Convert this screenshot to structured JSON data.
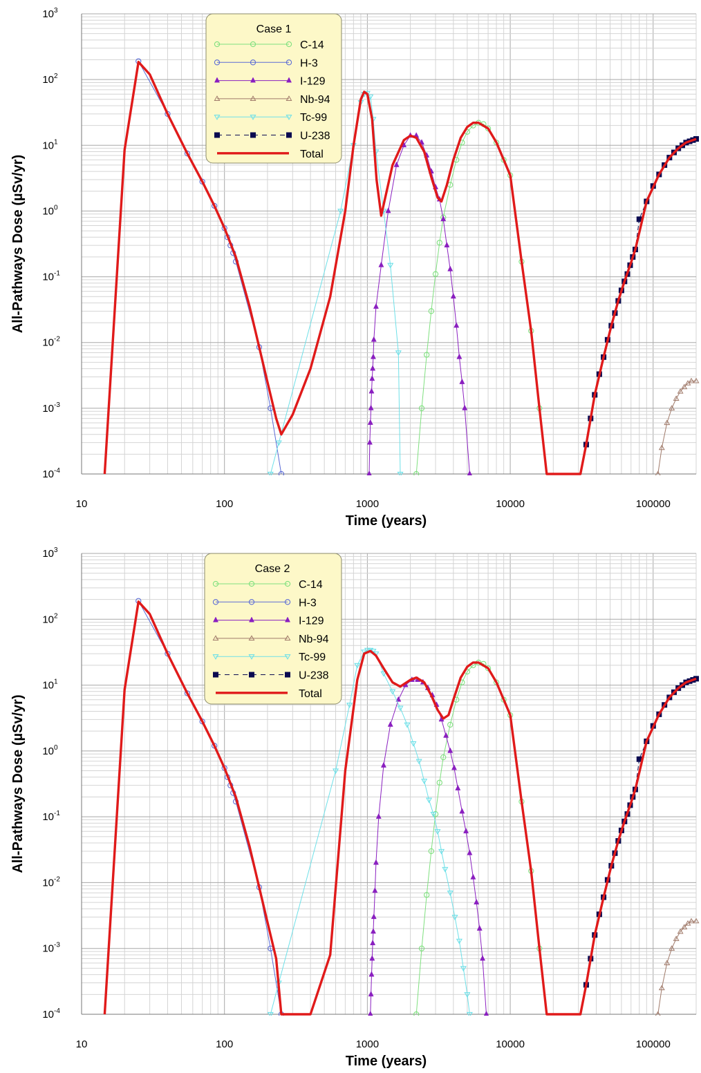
{
  "colors": {
    "C-14": "#7fe07f",
    "H-3": "#5b6bd6",
    "I-129": "#8a1fc0",
    "Nb-94": "#a07a6a",
    "Tc-99": "#6ee0e8",
    "U-238": "#0a0a50",
    "Total": "#e01a1a",
    "legend_bg": "#fdf8c8"
  },
  "chart_data": [
    {
      "type": "line",
      "legend_title": "Case 1",
      "legend_position": "top-center",
      "xlabel": "Time (years)",
      "ylabel": "All-Pathways Dose (µSv/yr)",
      "xscale": "log",
      "yscale": "log",
      "xlim": [
        10,
        200000
      ],
      "ylim": [
        0.0001,
        1000
      ],
      "grid": true,
      "x_tick_labels": [
        "10",
        "100",
        "1000",
        "10000",
        "100000"
      ],
      "y_tick_labels": [
        [
          "10",
          "-4"
        ],
        [
          "10",
          "-3"
        ],
        [
          "10",
          "-2"
        ],
        [
          "10",
          "-1"
        ],
        [
          "10",
          "0"
        ],
        [
          "10",
          "1"
        ],
        [
          "10",
          "2"
        ],
        [
          "10",
          "3"
        ]
      ],
      "series": [
        {
          "name": "C-14",
          "marker": "open-circle",
          "x": [
            2200,
            2400,
            2600,
            2800,
            3000,
            3200,
            3400,
            3800,
            4200,
            4600,
            5000,
            5500,
            6000,
            6500,
            7000,
            8000,
            9000,
            10000,
            12000,
            14000,
            16000
          ],
          "y": [
            0.0001,
            0.001,
            0.0065,
            0.03,
            0.11,
            0.33,
            0.8,
            2.5,
            6,
            11,
            16,
            20,
            22,
            21,
            18,
            11,
            6,
            3.5,
            0.17,
            0.015,
            0.001
          ]
        },
        {
          "name": "H-3",
          "marker": "open-circle",
          "x": [
            25,
            40,
            55,
            70,
            85,
            100,
            105,
            110,
            115,
            120,
            175,
            210,
            250
          ],
          "y": [
            190,
            30,
            7.5,
            2.8,
            1.2,
            0.55,
            0.4,
            0.3,
            0.23,
            0.17,
            0.0085,
            0.001,
            0.0001
          ]
        },
        {
          "name": "I-129",
          "marker": "filled-triangle",
          "x": [
            1030,
            1040,
            1050,
            1060,
            1070,
            1080,
            1090,
            1100,
            1110,
            1150,
            1250,
            1400,
            1600,
            1800,
            2000,
            2200,
            2400,
            2600,
            2800,
            3000,
            3200,
            3400,
            3600,
            3800,
            4000,
            4200,
            4400,
            4600,
            4800,
            5200
          ],
          "y": [
            0.0001,
            0.0003,
            0.0006,
            0.001,
            0.0018,
            0.0028,
            0.004,
            0.006,
            0.011,
            0.035,
            0.15,
            1,
            5,
            10,
            14,
            14,
            11,
            7,
            4,
            2.3,
            1.5,
            0.75,
            0.3,
            0.13,
            0.05,
            0.018,
            0.006,
            0.0025,
            0.001,
            0.0001
          ]
        },
        {
          "name": "Nb-94",
          "marker": "open-triangle",
          "x": [
            108000,
            115000,
            125000,
            135000,
            145000,
            155000,
            165000,
            175000,
            185000,
            200000
          ],
          "y": [
            0.0001,
            0.00025,
            0.0006,
            0.001,
            0.0014,
            0.0018,
            0.0021,
            0.0024,
            0.0026,
            0.0026
          ]
        },
        {
          "name": "Tc-99",
          "marker": "open-down-triangle",
          "x": [
            210,
            240,
            650,
            800,
            900,
            950,
            1000,
            1050,
            1100,
            1150,
            1300,
            1450,
            1650,
            1700
          ],
          "y": [
            0.0001,
            0.0003,
            1,
            10,
            45,
            60,
            62,
            55,
            25,
            8,
            1,
            0.15,
            0.007,
            0.0001
          ]
        },
        {
          "name": "U-238",
          "marker": "filled-square",
          "dashed": true,
          "x": [
            34000,
            36500,
            39000,
            42000,
            45000,
            48000,
            51000,
            54000,
            57000,
            60000,
            63000,
            66000,
            69000,
            72000,
            75000,
            80000,
            90000,
            100000,
            110000,
            120000,
            130000,
            140000,
            150000,
            160000,
            170000,
            180000,
            190000,
            200000
          ],
          "y": [
            0.00028,
            0.0007,
            0.0016,
            0.0033,
            0.006,
            0.011,
            0.018,
            0.028,
            0.043,
            0.062,
            0.085,
            0.11,
            0.15,
            0.2,
            0.26,
            0.75,
            1.4,
            2.4,
            3.6,
            5,
            6.5,
            7.8,
            9,
            10,
            11,
            11.5,
            12,
            12.5
          ]
        },
        {
          "name": "Total",
          "marker": "none",
          "x": [
            14.5,
            20,
            25,
            30,
            40,
            55,
            70,
            85,
            100,
            120,
            150,
            175,
            200,
            230,
            250,
            300,
            400,
            550,
            700,
            800,
            900,
            950,
            1000,
            1080,
            1160,
            1250,
            1500,
            1800,
            2000,
            2200,
            2500,
            2800,
            3100,
            3300,
            3600,
            4000,
            4500,
            5000,
            5500,
            6000,
            7000,
            8000,
            10000,
            12000,
            14000,
            16000,
            18000,
            31000,
            34000,
            39000,
            45000,
            51000,
            57000,
            63000,
            69000,
            75000,
            90000,
            110000,
            130000,
            150000,
            170000,
            200000
          ],
          "y": [
            0.0001,
            8.5,
            185,
            120,
            30,
            7.5,
            2.8,
            1.2,
            0.55,
            0.2,
            0.035,
            0.0085,
            0.0025,
            0.0007,
            0.0004,
            0.0008,
            0.004,
            0.05,
            1,
            10,
            50,
            65,
            60,
            25,
            3,
            0.85,
            5,
            12,
            14,
            13,
            8,
            3.3,
            1.6,
            1.4,
            2.5,
            6,
            13,
            19,
            22,
            22,
            18,
            11,
            3.5,
            0.17,
            0.015,
            0.001,
            0.0001,
            0.0001,
            0.00028,
            0.0016,
            0.006,
            0.018,
            0.043,
            0.085,
            0.15,
            0.26,
            1.4,
            3.6,
            6.5,
            9,
            11,
            12.5
          ]
        }
      ]
    },
    {
      "type": "line",
      "legend_title": "Case 2",
      "legend_position": "top-center",
      "xlabel": "Time (years)",
      "ylabel": "All-Pathways Dose (µSv/yr)",
      "xscale": "log",
      "yscale": "log",
      "xlim": [
        10,
        200000
      ],
      "ylim": [
        0.0001,
        1000
      ],
      "grid": true,
      "x_tick_labels": [
        "10",
        "100",
        "1000",
        "10000",
        "100000"
      ],
      "y_tick_labels": [
        [
          "10",
          "-4"
        ],
        [
          "10",
          "-3"
        ],
        [
          "10",
          "-2"
        ],
        [
          "10",
          "-1"
        ],
        [
          "10",
          "0"
        ],
        [
          "10",
          "1"
        ],
        [
          "10",
          "2"
        ],
        [
          "10",
          "3"
        ]
      ],
      "series": [
        {
          "name": "C-14",
          "marker": "open-circle",
          "x": [
            2200,
            2400,
            2600,
            2800,
            3000,
            3200,
            3400,
            3800,
            4200,
            4600,
            5000,
            5500,
            6000,
            6500,
            7000,
            8000,
            9000,
            10000,
            12000,
            14000,
            16000
          ],
          "y": [
            0.0001,
            0.001,
            0.0065,
            0.03,
            0.11,
            0.33,
            0.8,
            2.5,
            6,
            11,
            16,
            20,
            22,
            21,
            18,
            11,
            6,
            3.5,
            0.17,
            0.015,
            0.001
          ]
        },
        {
          "name": "H-3",
          "marker": "open-circle",
          "x": [
            25,
            40,
            55,
            70,
            85,
            100,
            105,
            110,
            115,
            120,
            175,
            210,
            250
          ],
          "y": [
            190,
            30,
            7.5,
            2.8,
            1.2,
            0.55,
            0.4,
            0.3,
            0.23,
            0.17,
            0.0085,
            0.001,
            0.0001
          ]
        },
        {
          "name": "I-129",
          "marker": "filled-triangle",
          "x": [
            1050,
            1060,
            1070,
            1080,
            1090,
            1100,
            1110,
            1130,
            1150,
            1200,
            1300,
            1450,
            1650,
            1850,
            2050,
            2250,
            2450,
            2650,
            2850,
            3050,
            3300,
            3550,
            3800,
            4050,
            4300,
            4600,
            4900,
            5200,
            5500,
            5800,
            6100,
            6400,
            6800
          ],
          "y": [
            0.0001,
            0.0002,
            0.0004,
            0.0007,
            0.0012,
            0.0018,
            0.003,
            0.0075,
            0.02,
            0.1,
            0.6,
            2.5,
            6,
            10,
            12,
            12,
            11,
            9,
            7,
            5,
            3,
            1.7,
            1,
            0.55,
            0.27,
            0.12,
            0.06,
            0.028,
            0.012,
            0.005,
            0.002,
            0.0007,
            0.0001
          ]
        },
        {
          "name": "Nb-94",
          "marker": "open-triangle",
          "x": [
            108000,
            115000,
            125000,
            135000,
            145000,
            155000,
            165000,
            175000,
            185000,
            200000
          ],
          "y": [
            0.0001,
            0.00025,
            0.0006,
            0.001,
            0.0014,
            0.0018,
            0.0021,
            0.0024,
            0.0026,
            0.0026
          ]
        },
        {
          "name": "Tc-99",
          "marker": "open-down-triangle",
          "x": [
            210,
            240,
            600,
            750,
            850,
            950,
            1000,
            1050,
            1100,
            1150,
            1300,
            1500,
            1700,
            1900,
            2100,
            2300,
            2500,
            2700,
            2900,
            3100,
            3300,
            3500,
            3800,
            4100,
            4400,
            4700,
            5000,
            5200
          ],
          "y": [
            0.0001,
            0.0003,
            0.5,
            5,
            20,
            32,
            34,
            34,
            33,
            30,
            15,
            8,
            4.5,
            2.5,
            1.3,
            0.7,
            0.35,
            0.18,
            0.11,
            0.06,
            0.03,
            0.016,
            0.007,
            0.003,
            0.0013,
            0.0005,
            0.0002,
            0.0001
          ]
        },
        {
          "name": "U-238",
          "marker": "filled-square",
          "dashed": true,
          "x": [
            34000,
            36500,
            39000,
            42000,
            45000,
            48000,
            51000,
            54000,
            57000,
            60000,
            63000,
            66000,
            69000,
            72000,
            75000,
            80000,
            90000,
            100000,
            110000,
            120000,
            130000,
            140000,
            150000,
            160000,
            170000,
            180000,
            190000,
            200000
          ],
          "y": [
            0.00028,
            0.0007,
            0.0016,
            0.0033,
            0.006,
            0.011,
            0.018,
            0.028,
            0.043,
            0.062,
            0.085,
            0.11,
            0.15,
            0.2,
            0.26,
            0.75,
            1.4,
            2.4,
            3.6,
            5,
            6.5,
            7.8,
            9,
            10,
            11,
            11.5,
            12,
            12.5
          ]
        },
        {
          "name": "Total",
          "marker": "none",
          "x": [
            14.5,
            20,
            25,
            30,
            40,
            55,
            70,
            85,
            100,
            120,
            150,
            175,
            200,
            230,
            250,
            300,
            400,
            550,
            700,
            850,
            950,
            1050,
            1150,
            1300,
            1500,
            1700,
            2000,
            2200,
            2500,
            2800,
            3100,
            3400,
            3700,
            4000,
            4500,
            5000,
            5500,
            6000,
            7000,
            8000,
            10000,
            12000,
            14000,
            16000,
            18000,
            31000,
            34000,
            39000,
            45000,
            51000,
            57000,
            63000,
            69000,
            75000,
            90000,
            110000,
            130000,
            150000,
            170000,
            200000
          ],
          "y": [
            0.0001,
            8.5,
            185,
            120,
            30,
            7.5,
            2.8,
            1.2,
            0.55,
            0.2,
            0.035,
            0.0085,
            0.0025,
            0.0007,
            0.0001,
            0.0001,
            0.0001,
            0.0008,
            0.5,
            12,
            30,
            33,
            28,
            18,
            11,
            9.5,
            12,
            13,
            11,
            7,
            4.2,
            3.1,
            3.5,
            6,
            13,
            19,
            22,
            22,
            18,
            11,
            3.5,
            0.17,
            0.015,
            0.001,
            0.0001,
            0.0001,
            0.00028,
            0.0016,
            0.006,
            0.018,
            0.043,
            0.085,
            0.15,
            0.26,
            1.4,
            3.6,
            6.5,
            9,
            11,
            12.5
          ]
        }
      ]
    }
  ]
}
